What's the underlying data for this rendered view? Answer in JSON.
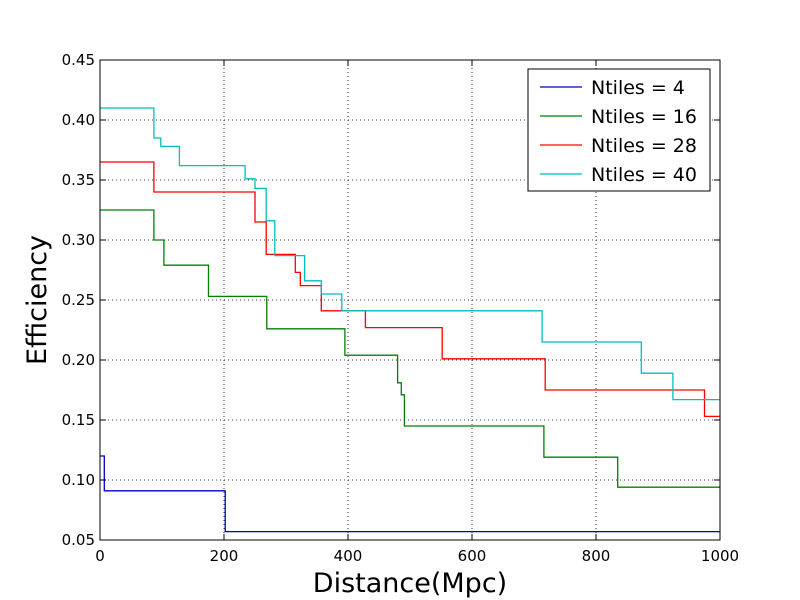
{
  "chart_data": {
    "type": "line",
    "xlabel": "Distance(Mpc)",
    "ylabel": "Efficiency",
    "xlim": [
      0,
      1000
    ],
    "ylim": [
      0.05,
      0.45
    ],
    "x_ticks": [
      0,
      200,
      400,
      600,
      800,
      1000
    ],
    "y_ticks": [
      0.05,
      0.1,
      0.15,
      0.2,
      0.25,
      0.3,
      0.35,
      0.4,
      0.45
    ],
    "x_tick_labels": [
      "0",
      "200",
      "400",
      "600",
      "800",
      "1000"
    ],
    "y_tick_labels": [
      "0.05",
      "0.10",
      "0.15",
      "0.20",
      "0.25",
      "0.30",
      "0.35",
      "0.40",
      "0.45"
    ],
    "grid": true,
    "legend_position": "top-right",
    "step": true,
    "series": [
      {
        "name": "Ntiles = 4",
        "color": "#0000bf",
        "points": [
          [
            0,
            0.12
          ],
          [
            7,
            0.12
          ],
          [
            7,
            0.091
          ],
          [
            202,
            0.091
          ],
          [
            202,
            0.057
          ],
          [
            1000,
            0.057
          ]
        ]
      },
      {
        "name": "Ntiles = 16",
        "color": "#008000",
        "points": [
          [
            0,
            0.325
          ],
          [
            87,
            0.325
          ],
          [
            87,
            0.3
          ],
          [
            103,
            0.3
          ],
          [
            103,
            0.279
          ],
          [
            175,
            0.279
          ],
          [
            175,
            0.253
          ],
          [
            269,
            0.253
          ],
          [
            269,
            0.226
          ],
          [
            395,
            0.226
          ],
          [
            395,
            0.204
          ],
          [
            480,
            0.204
          ],
          [
            480,
            0.181
          ],
          [
            486,
            0.181
          ],
          [
            486,
            0.171
          ],
          [
            491,
            0.171
          ],
          [
            491,
            0.145
          ],
          [
            716,
            0.145
          ],
          [
            716,
            0.119
          ],
          [
            835,
            0.119
          ],
          [
            835,
            0.094
          ],
          [
            1000,
            0.094
          ]
        ]
      },
      {
        "name": "Ntiles = 28",
        "color": "#ff0000",
        "points": [
          [
            0,
            0.365
          ],
          [
            87,
            0.365
          ],
          [
            87,
            0.34
          ],
          [
            250,
            0.34
          ],
          [
            250,
            0.315
          ],
          [
            268,
            0.315
          ],
          [
            268,
            0.288
          ],
          [
            315,
            0.288
          ],
          [
            315,
            0.273
          ],
          [
            323,
            0.273
          ],
          [
            323,
            0.262
          ],
          [
            357,
            0.262
          ],
          [
            357,
            0.241
          ],
          [
            428,
            0.241
          ],
          [
            428,
            0.227
          ],
          [
            552,
            0.227
          ],
          [
            552,
            0.201
          ],
          [
            718,
            0.201
          ],
          [
            718,
            0.175
          ],
          [
            975,
            0.175
          ],
          [
            975,
            0.153
          ],
          [
            1000,
            0.153
          ]
        ]
      },
      {
        "name": "Ntiles = 40",
        "color": "#00bfbf",
        "points": [
          [
            0,
            0.41
          ],
          [
            87,
            0.41
          ],
          [
            87,
            0.385
          ],
          [
            98,
            0.385
          ],
          [
            98,
            0.378
          ],
          [
            128,
            0.378
          ],
          [
            128,
            0.362
          ],
          [
            234,
            0.362
          ],
          [
            234,
            0.351
          ],
          [
            250,
            0.351
          ],
          [
            250,
            0.343
          ],
          [
            268,
            0.343
          ],
          [
            268,
            0.316
          ],
          [
            282,
            0.316
          ],
          [
            282,
            0.287
          ],
          [
            330,
            0.287
          ],
          [
            330,
            0.266
          ],
          [
            357,
            0.266
          ],
          [
            357,
            0.255
          ],
          [
            390,
            0.255
          ],
          [
            390,
            0.241
          ],
          [
            713,
            0.241
          ],
          [
            713,
            0.215
          ],
          [
            873,
            0.215
          ],
          [
            873,
            0.189
          ],
          [
            924,
            0.189
          ],
          [
            924,
            0.167
          ],
          [
            1000,
            0.167
          ]
        ]
      }
    ]
  }
}
